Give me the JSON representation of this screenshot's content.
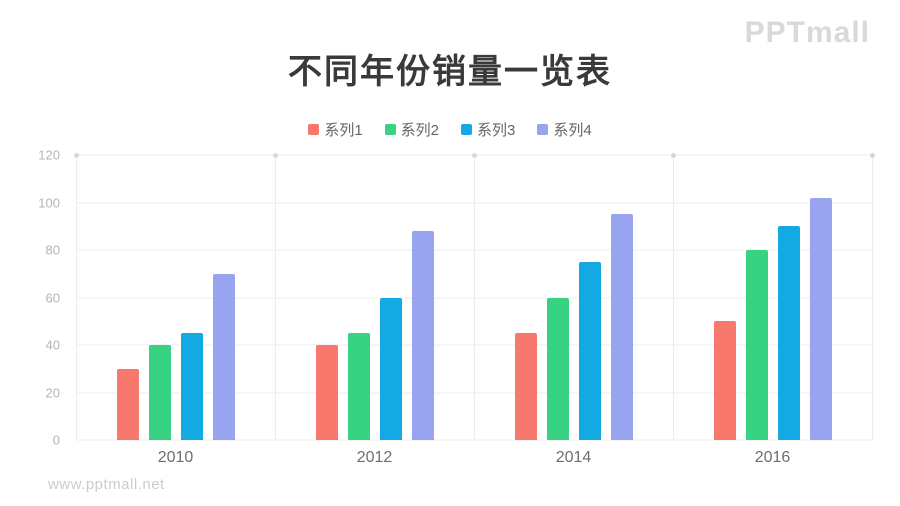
{
  "page": {
    "logo": "PPTmall",
    "watermark": "www.pptmall.net"
  },
  "chart_data": {
    "type": "bar",
    "title": "不同年份销量一览表",
    "categories": [
      "2010",
      "2012",
      "2014",
      "2016"
    ],
    "series": [
      {
        "name": "系列1",
        "color": "#f8786e",
        "values": [
          30,
          40,
          45,
          50
        ]
      },
      {
        "name": "系列2",
        "color": "#38d382",
        "values": [
          40,
          45,
          60,
          80
        ]
      },
      {
        "name": "系列3",
        "color": "#14a9e3",
        "values": [
          45,
          60,
          75,
          90
        ]
      },
      {
        "name": "系列4",
        "color": "#98a4ef",
        "values": [
          70,
          88,
          95,
          102
        ]
      }
    ],
    "xlabel": "",
    "ylabel": "",
    "ylim": [
      0,
      120
    ],
    "yticks": [
      0,
      20,
      40,
      60,
      80,
      100,
      120
    ],
    "grid": true,
    "legend_position": "top"
  }
}
